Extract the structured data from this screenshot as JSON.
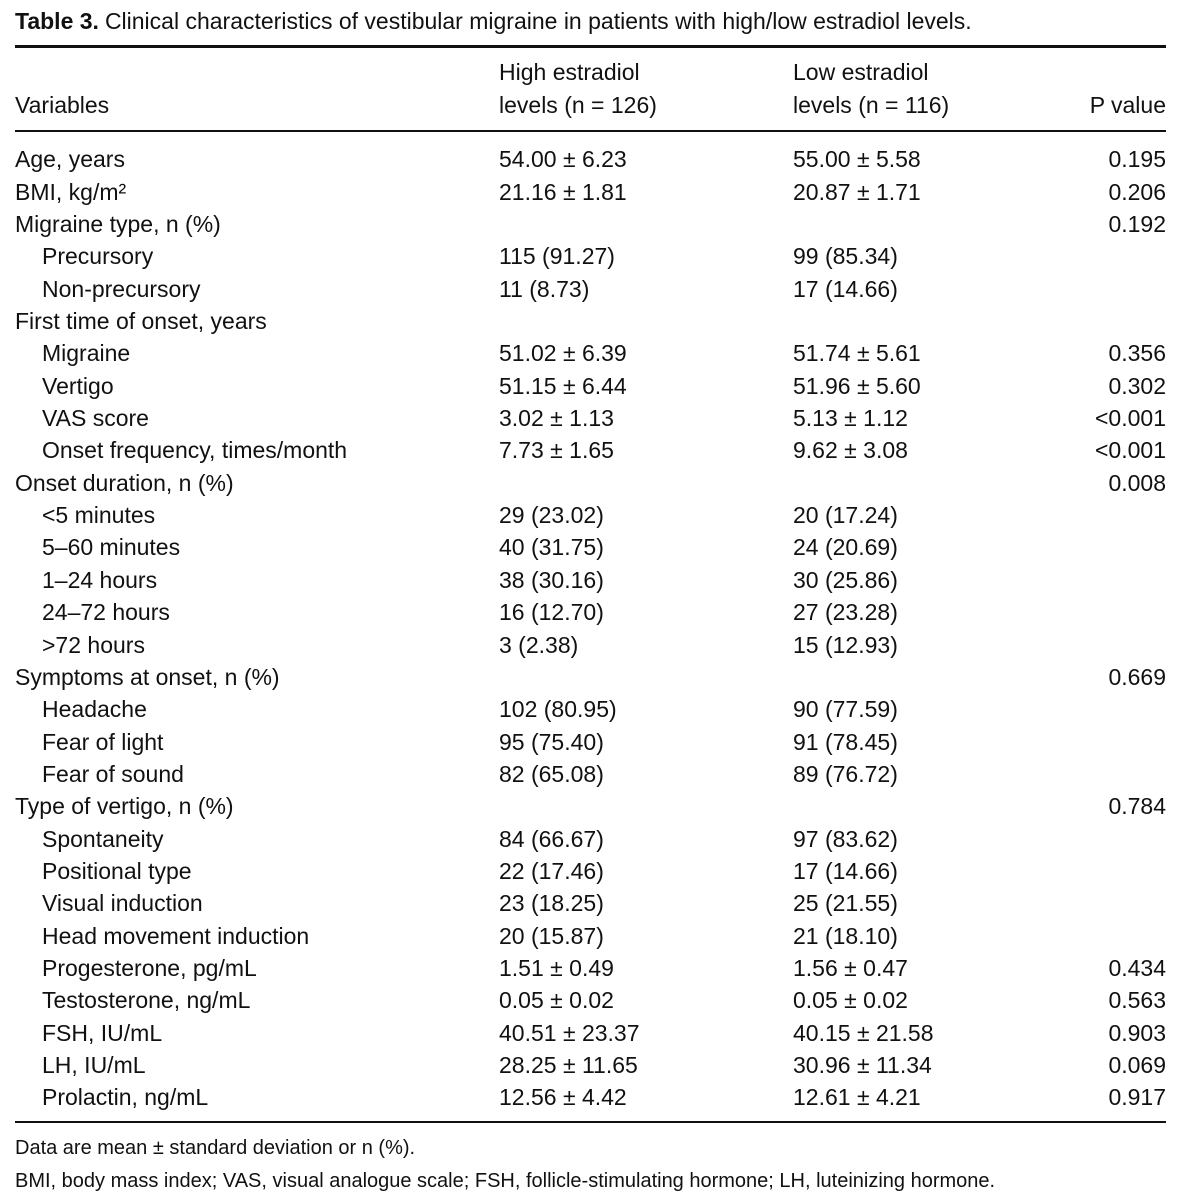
{
  "caption": {
    "label": "Table 3.",
    "text": "Clinical characteristics of vestibular migraine in patients with high/low estradiol levels."
  },
  "columns": {
    "variables": "Variables",
    "high_line1": "High estradiol",
    "high_line2": "levels (n = 126)",
    "low_line1": "Low estradiol",
    "low_line2": "levels (n = 116)",
    "p_value": "P value"
  },
  "rows": [
    {
      "variable": "Age, years",
      "high": "54.00 ± 6.23",
      "low": "55.00 ± 5.58",
      "p": "0.195"
    },
    {
      "variable": "BMI, kg/m²",
      "high": "21.16 ± 1.81",
      "low": "20.87 ± 1.71",
      "p": "0.206"
    },
    {
      "variable": "Migraine type, n (%)",
      "high": "",
      "low": "",
      "p": "0.192"
    },
    {
      "variable": "Precursory",
      "high": "115 (91.27)",
      "low": "99 (85.34)",
      "p": ""
    },
    {
      "variable": "Non-precursory",
      "high": "11 (8.73)",
      "low": "17 (14.66)",
      "p": ""
    },
    {
      "variable": "First time of onset, years",
      "high": "",
      "low": "",
      "p": ""
    },
    {
      "variable": "Migraine",
      "high": "51.02 ± 6.39",
      "low": "51.74 ± 5.61",
      "p": "0.356"
    },
    {
      "variable": "Vertigo",
      "high": "51.15 ± 6.44",
      "low": "51.96 ± 5.60",
      "p": "0.302"
    },
    {
      "variable": "VAS score",
      "high": "3.02 ± 1.13",
      "low": "5.13 ± 1.12",
      "p": "<0.001"
    },
    {
      "variable": "Onset frequency, times/month",
      "high": "7.73 ± 1.65",
      "low": "9.62 ± 3.08",
      "p": "<0.001"
    },
    {
      "variable": "Onset duration, n (%)",
      "high": "",
      "low": "",
      "p": "0.008"
    },
    {
      "variable": "<5 minutes",
      "high": "29 (23.02)",
      "low": "20 (17.24)",
      "p": ""
    },
    {
      "variable": "5–60 minutes",
      "high": "40 (31.75)",
      "low": "24 (20.69)",
      "p": ""
    },
    {
      "variable": "1–24 hours",
      "high": "38 (30.16)",
      "low": "30 (25.86)",
      "p": ""
    },
    {
      "variable": "24–72 hours",
      "high": "16 (12.70)",
      "low": "27 (23.28)",
      "p": ""
    },
    {
      "variable": ">72 hours",
      "high": "3 (2.38)",
      "low": "15 (12.93)",
      "p": ""
    },
    {
      "variable": "Symptoms at onset, n (%)",
      "high": "",
      "low": "",
      "p": "0.669"
    },
    {
      "variable": "Headache",
      "high": "102 (80.95)",
      "low": "90 (77.59)",
      "p": ""
    },
    {
      "variable": "Fear of light",
      "high": "95 (75.40)",
      "low": "91 (78.45)",
      "p": ""
    },
    {
      "variable": "Fear of sound",
      "high": "82 (65.08)",
      "low": "89 (76.72)",
      "p": ""
    },
    {
      "variable": "Type of vertigo, n (%)",
      "high": "",
      "low": "",
      "p": "0.784"
    },
    {
      "variable": "Spontaneity",
      "high": "84 (66.67)",
      "low": "97 (83.62)",
      "p": ""
    },
    {
      "variable": "Positional type",
      "high": "22 (17.46)",
      "low": "17 (14.66)",
      "p": ""
    },
    {
      "variable": "Visual induction",
      "high": "23 (18.25)",
      "low": "25 (21.55)",
      "p": ""
    },
    {
      "variable": "Head movement induction",
      "high": "20 (15.87)",
      "low": "21 (18.10)",
      "p": ""
    },
    {
      "variable": "Progesterone, pg/mL",
      "high": "1.51 ± 0.49",
      "low": "1.56 ± 0.47",
      "p": "0.434"
    },
    {
      "variable": "Testosterone, ng/mL",
      "high": "0.05 ± 0.02",
      "low": "0.05 ± 0.02",
      "p": "0.563"
    },
    {
      "variable": "FSH, IU/mL",
      "high": "40.51 ± 23.37",
      "low": "40.15 ± 21.58",
      "p": "0.903"
    },
    {
      "variable": "LH, IU/mL",
      "high": "28.25 ± 11.65",
      "low": "30.96 ± 11.34",
      "p": "0.069"
    },
    {
      "variable": "Prolactin, ng/mL",
      "high": "12.56 ± 4.42",
      "low": "12.61 ± 4.21",
      "p": "0.917"
    }
  ],
  "footnotes": [
    "Data are mean ± standard deviation or n (%).",
    "BMI, body mass index; VAS, visual analogue scale; FSH, follicle-stimulating hormone; LH, luteinizing hormone."
  ]
}
